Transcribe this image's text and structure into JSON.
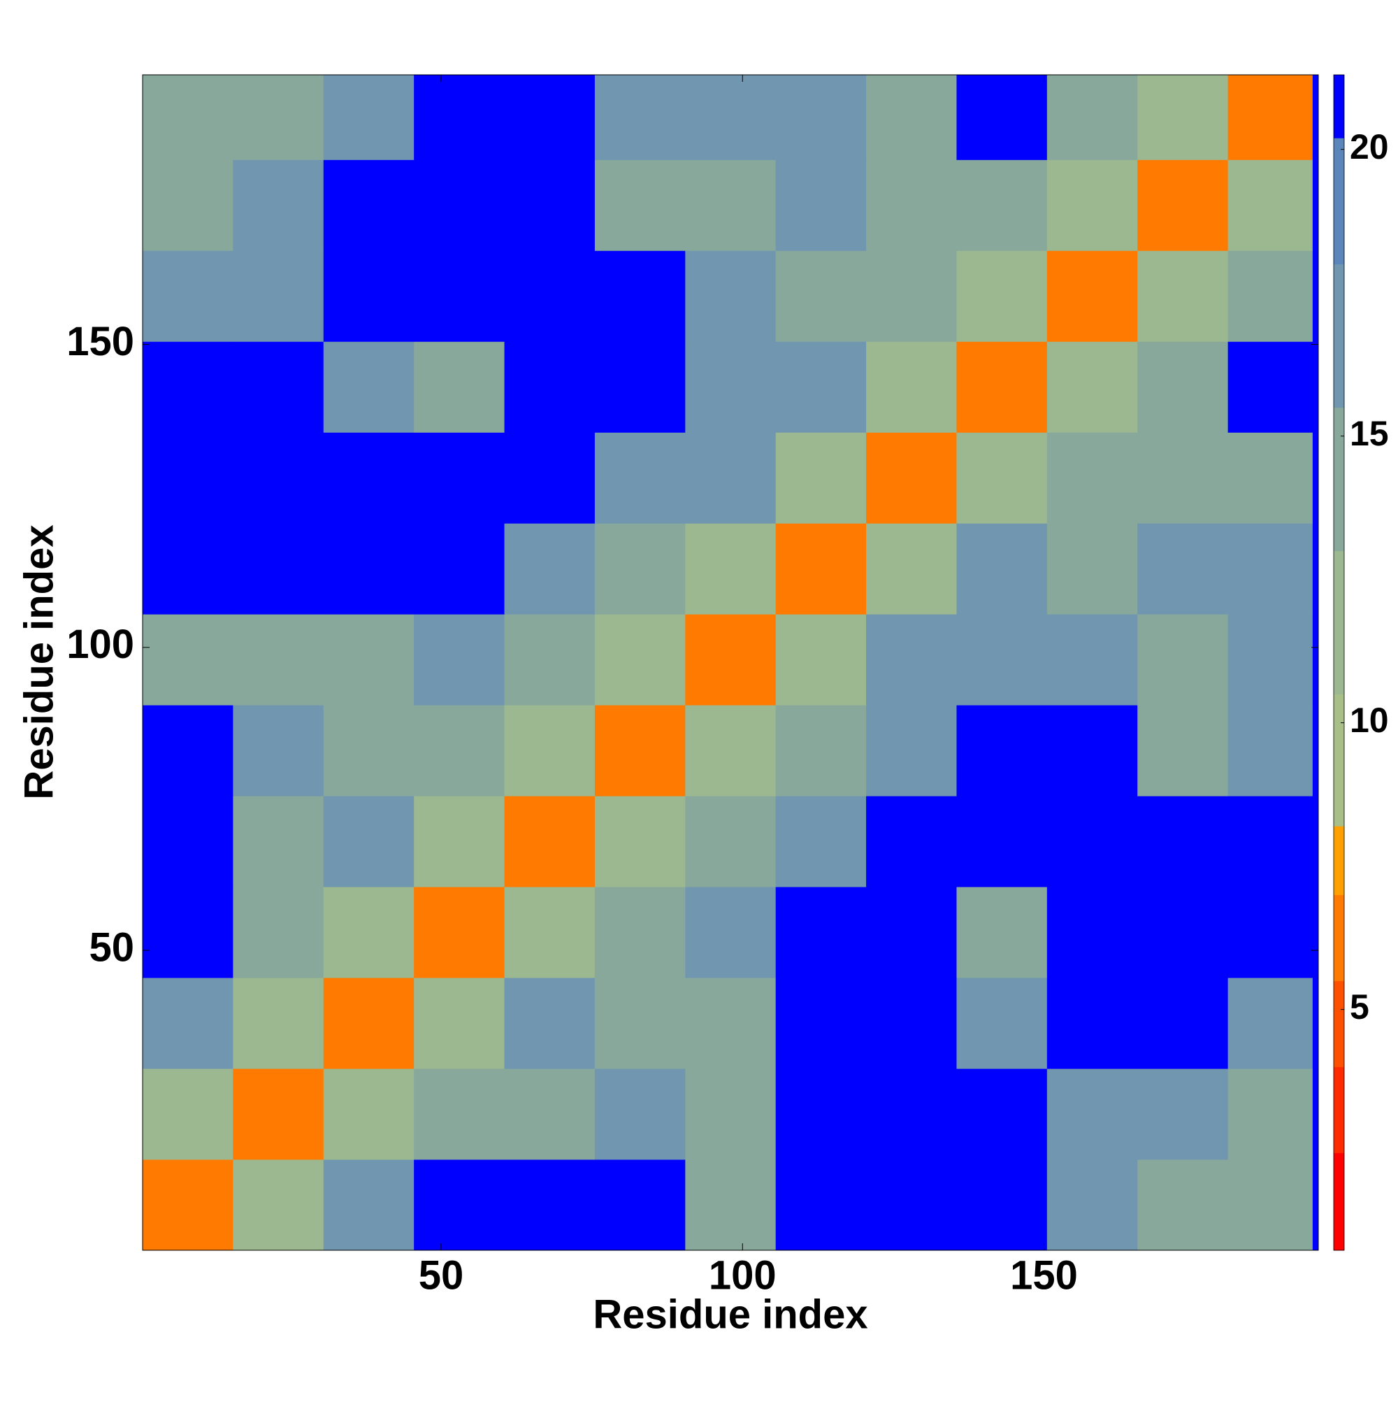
{
  "chart_data": {
    "type": "heatmap",
    "xlabel": "Residue index",
    "ylabel": "Residue index",
    "x_edges": [
      0.5,
      15.5,
      30.5,
      45.5,
      60.5,
      75.5,
      90.5,
      105.5,
      120.5,
      135.5,
      150.5,
      165.5,
      180.5,
      194.5
    ],
    "y_edges": [
      0.5,
      15.5,
      30.5,
      45.5,
      60.5,
      75.5,
      90.5,
      105.5,
      120.5,
      135.5,
      150.5,
      165.5,
      180.5,
      194.5
    ],
    "z": [
      [
        6,
        13,
        17,
        20.5,
        20.5,
        20.5,
        15,
        20.5,
        20.5,
        20.5,
        17,
        15,
        15
      ],
      [
        13,
        6,
        13,
        15,
        15,
        16,
        15,
        20.5,
        20.5,
        20.5,
        17,
        16,
        15
      ],
      [
        17,
        13,
        6,
        12,
        16,
        15,
        15,
        20.5,
        20.5,
        18,
        20.5,
        20.5,
        16
      ],
      [
        20.5,
        15,
        12,
        6,
        13,
        15,
        17,
        20.5,
        20.5,
        15,
        20.5,
        20.5,
        20.5
      ],
      [
        20.5,
        15,
        16,
        13,
        6,
        12,
        14,
        17,
        20.5,
        20.5,
        20.5,
        20.5,
        20.5
      ],
      [
        20.5,
        16,
        15,
        15,
        12,
        6,
        13,
        15,
        18,
        20.5,
        20.5,
        15,
        17
      ],
      [
        15,
        15,
        15,
        17,
        14,
        13,
        6,
        12,
        17,
        17,
        16,
        15,
        16
      ],
      [
        20.5,
        20.5,
        20.5,
        20.5,
        17,
        15,
        12,
        6,
        13,
        18,
        15,
        16,
        16
      ],
      [
        20.5,
        20.5,
        20.5,
        20.5,
        20.5,
        18,
        17,
        13,
        6,
        12,
        15,
        14,
        15
      ],
      [
        20.5,
        20.5,
        18,
        15,
        20.5,
        20.5,
        17,
        18,
        12,
        6,
        13,
        15,
        20.5
      ],
      [
        17,
        17,
        20.5,
        20.5,
        20.5,
        20.5,
        16,
        15,
        15,
        13,
        6,
        12,
        14
      ],
      [
        15,
        16,
        20.5,
        20.5,
        20.5,
        15,
        15,
        16,
        14,
        15,
        12,
        6,
        13
      ],
      [
        15,
        15,
        16,
        20.5,
        20.5,
        17,
        16,
        16,
        15,
        20.5,
        14,
        13,
        6
      ]
    ],
    "xlim": [
      0.5,
      195.5
    ],
    "ylim": [
      0.5,
      194.5
    ],
    "xticks": [
      50,
      100,
      150
    ],
    "yticks": [
      50,
      100,
      150
    ],
    "clim": [
      0.8,
      21.3
    ],
    "cticks": [
      5,
      20,
      15,
      10
    ],
    "color_bounds": [
      0.8,
      2.5,
      4,
      5.5,
      7,
      8.2,
      10.5,
      13,
      15.5,
      18,
      20.2,
      21.3
    ],
    "colors": [
      "#ff0000",
      "#ff2a00",
      "#ff5000",
      "#ff7a00",
      "#ffa000",
      "#a8bf88",
      "#9cb890",
      "#88a89c",
      "#7096b0",
      "#5a86bc",
      "#0000ff"
    ]
  }
}
